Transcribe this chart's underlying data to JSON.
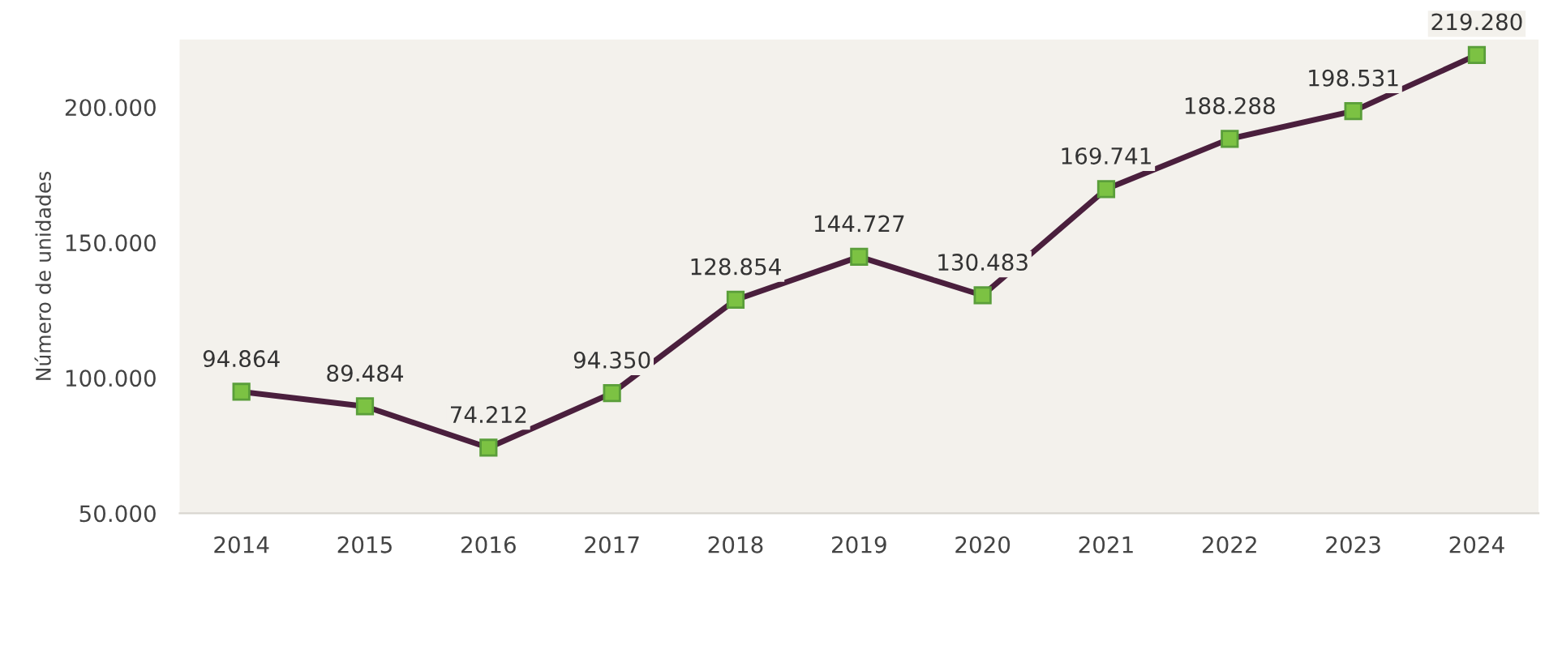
{
  "chart_data": {
    "type": "line",
    "ylabel": "Número de unidades",
    "categories": [
      "2014",
      "2015",
      "2016",
      "2017",
      "2018",
      "2019",
      "2020",
      "2021",
      "2022",
      "2023",
      "2024"
    ],
    "series": [
      {
        "color": "#4a1f3d",
        "values": [
          94864,
          89484,
          74212,
          94350,
          128854,
          144727,
          130483,
          169741,
          188288,
          198531,
          219280
        ],
        "value_labels": [
          "94.864",
          "89.484",
          "74.212",
          "94.350",
          "128.854",
          "144.727",
          "130.483",
          "169.741",
          "188.288",
          "198.531",
          "219.280"
        ]
      }
    ],
    "ylim": [
      50000,
      225000
    ],
    "yticks": [
      {
        "value": 50000,
        "label": "50.000"
      },
      {
        "value": 100000,
        "label": "100.000"
      },
      {
        "value": 150000,
        "label": "150.000"
      },
      {
        "value": 200000,
        "label": "200.000"
      }
    ],
    "marker": "square",
    "grid": false
  }
}
